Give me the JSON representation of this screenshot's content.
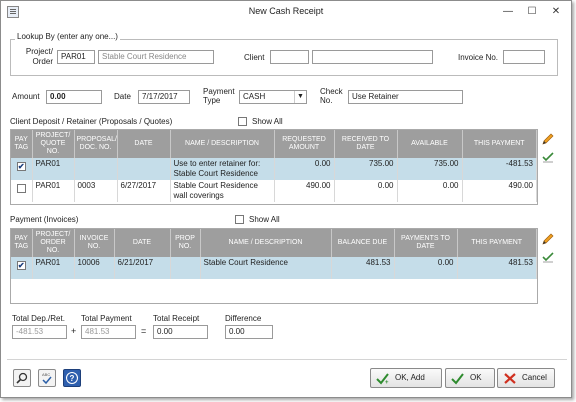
{
  "window": {
    "title": "New Cash Receipt",
    "minimize": "—",
    "maximize": "☐",
    "close": "✕"
  },
  "lookup": {
    "group_title": "Lookup By (enter any one...)",
    "project_label_1": "Project/",
    "project_label_2": "Order",
    "project_code": "PAR01",
    "project_name": "Stable Court Residence",
    "client_label": "Client",
    "client_code": "",
    "client_name": "",
    "invoice_label": "Invoice No.",
    "invoice_value": ""
  },
  "receipt": {
    "amount_label": "Amount",
    "amount_value": "0.00",
    "date_label": "Date",
    "date_value": "7/17/2017",
    "payment_type_label_1": "Payment",
    "payment_type_label_2": "Type",
    "payment_type_value": "CASH",
    "check_label_1": "Check",
    "check_label_2": "No.",
    "check_value": "Use Retainer"
  },
  "deposits": {
    "section_label": "Client Deposit / Retainer (Proposals / Quotes)",
    "show_all_label": "Show All",
    "columns": [
      "PAY TAG",
      "PROJECT/ QUOTE NO.",
      "PROPOSAL/ DOC. NO.",
      "DATE",
      "NAME / DESCRIPTION",
      "REQUESTED AMOUNT",
      "RECEIVED TO DATE",
      "AVAILABLE",
      "THIS PAYMENT"
    ],
    "rows": [
      {
        "checked": "✔",
        "project": "PAR01",
        "doc": "",
        "date": "",
        "desc_1": "Use to enter retainer for:",
        "desc_2": "Stable Court Residence",
        "requested": "0.00",
        "received": "735.00",
        "available": "735.00",
        "payment": "-481.53"
      },
      {
        "checked": "",
        "project": "PAR01",
        "doc": "0003",
        "date": "6/27/2017",
        "desc_1": "Stable Court Residence",
        "desc_2": "wall coverings",
        "requested": "490.00",
        "received": "0.00",
        "available": "0.00",
        "payment": "490.00"
      }
    ]
  },
  "invoices": {
    "section_label": "Payment (Invoices)",
    "show_all_label": "Show All",
    "columns": [
      "PAY TAG",
      "PROJECT/ ORDER NO.",
      "INVOICE NO.",
      "DATE",
      "PROP NO.",
      "NAME / DESCRIPTION",
      "BALANCE DUE",
      "PAYMENTS TO DATE",
      "THIS PAYMENT"
    ],
    "rows": [
      {
        "checked": "✔",
        "project": "PAR01",
        "invoice": "10006",
        "date": "6/21/2017",
        "prop": "",
        "desc": "Stable Court Residence",
        "balance": "481.53",
        "payments": "0.00",
        "payment": "481.53"
      }
    ]
  },
  "totals": {
    "dep_label": "Total Dep./Ret.",
    "dep_value": "-481.53",
    "plus": "+",
    "payment_label": "Total Payment",
    "payment_value": "481.53",
    "equals": "=",
    "receipt_label": "Total Receipt",
    "receipt_value": "0.00",
    "diff_label": "Difference",
    "diff_value": "0.00"
  },
  "buttons": {
    "ok_add": "OK, Add",
    "ok": "OK",
    "cancel": "Cancel"
  }
}
